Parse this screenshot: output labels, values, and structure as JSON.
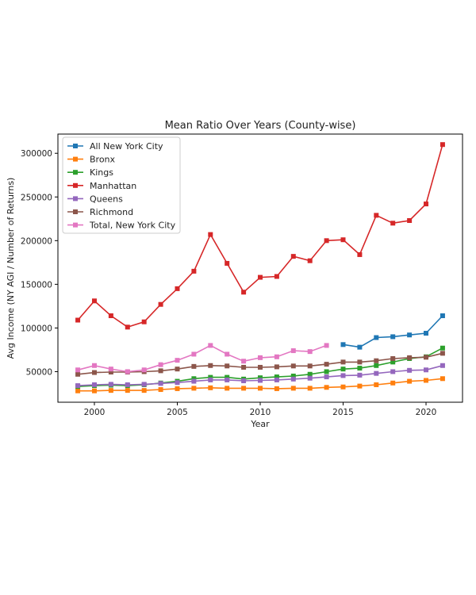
{
  "chart_data": {
    "type": "line",
    "title": "Mean Ratio Over Years (County-wise)",
    "xlabel": "Year",
    "ylabel": "Avg Income (NY AGI / Number of Returns)",
    "xlim": [
      1997.8,
      2022.2
    ],
    "ylim": [
      15000,
      322000
    ],
    "xticks": [
      2000,
      2005,
      2010,
      2015,
      2020
    ],
    "yticks": [
      50000,
      100000,
      150000,
      200000,
      250000,
      300000
    ],
    "grid": false,
    "legend_position": "top-left",
    "marker": "square",
    "series": [
      {
        "name": "All New York City",
        "color": "#1f77b4",
        "x": [
          2015,
          2016,
          2017,
          2018,
          2019,
          2020,
          2021
        ],
        "y": [
          81000,
          78000,
          89000,
          90000,
          92000,
          94000,
          114000
        ]
      },
      {
        "name": "Bronx",
        "color": "#ff7f0e",
        "x": [
          1999,
          2000,
          2001,
          2002,
          2003,
          2004,
          2005,
          2006,
          2007,
          2008,
          2009,
          2010,
          2011,
          2012,
          2013,
          2014,
          2015,
          2016,
          2017,
          2018,
          2019,
          2020,
          2021
        ],
        "y": [
          28000,
          28000,
          28500,
          28500,
          28500,
          29500,
          30500,
          31000,
          31500,
          31000,
          31000,
          31000,
          30500,
          31000,
          31000,
          32000,
          32500,
          33500,
          35000,
          37000,
          39000,
          40000,
          42000
        ]
      },
      {
        "name": "Kings",
        "color": "#2ca02c",
        "x": [
          1999,
          2000,
          2001,
          2002,
          2003,
          2004,
          2005,
          2006,
          2007,
          2008,
          2009,
          2010,
          2011,
          2012,
          2013,
          2014,
          2015,
          2016,
          2017,
          2018,
          2019,
          2020,
          2021
        ],
        "y": [
          33000,
          34000,
          34500,
          34000,
          35000,
          37000,
          39000,
          42000,
          43500,
          43500,
          41500,
          43000,
          44000,
          45000,
          47000,
          50000,
          53000,
          54000,
          57000,
          61000,
          65000,
          67000,
          77000
        ]
      },
      {
        "name": "Manhattan",
        "color": "#d62728",
        "x": [
          1999,
          2000,
          2001,
          2002,
          2003,
          2004,
          2005,
          2006,
          2007,
          2008,
          2009,
          2010,
          2011,
          2012,
          2013,
          2014,
          2015,
          2016,
          2017,
          2018,
          2019,
          2020,
          2021
        ],
        "y": [
          109000,
          131000,
          114000,
          101000,
          107000,
          127000,
          145000,
          165000,
          207000,
          174000,
          141000,
          158000,
          159000,
          182000,
          177000,
          200000,
          201000,
          184000,
          229000,
          220000,
          223000,
          242000,
          310000
        ]
      },
      {
        "name": "Queens",
        "color": "#9467bd",
        "x": [
          1999,
          2000,
          2001,
          2002,
          2003,
          2004,
          2005,
          2006,
          2007,
          2008,
          2009,
          2010,
          2011,
          2012,
          2013,
          2014,
          2015,
          2016,
          2017,
          2018,
          2019,
          2020,
          2021
        ],
        "y": [
          34000,
          35000,
          35500,
          35000,
          35500,
          36500,
          37500,
          39000,
          40500,
          40500,
          39500,
          40000,
          40500,
          41500,
          42500,
          44000,
          45500,
          46000,
          48000,
          50000,
          51500,
          52000,
          57000
        ]
      },
      {
        "name": "Richmond",
        "color": "#8c564b",
        "x": [
          1999,
          2000,
          2001,
          2002,
          2003,
          2004,
          2005,
          2006,
          2007,
          2008,
          2009,
          2010,
          2011,
          2012,
          2013,
          2014,
          2015,
          2016,
          2017,
          2018,
          2019,
          2020,
          2021
        ],
        "y": [
          47000,
          49000,
          49500,
          49500,
          50000,
          51000,
          53000,
          56000,
          57000,
          56500,
          55000,
          55000,
          55500,
          56500,
          56500,
          58500,
          61000,
          61000,
          62500,
          65000,
          66000,
          66500,
          71000
        ]
      },
      {
        "name": "Total, New York City",
        "color": "#e377c2",
        "x": [
          1999,
          2000,
          2001,
          2002,
          2003,
          2004,
          2005,
          2006,
          2007,
          2008,
          2009,
          2010,
          2011,
          2012,
          2013,
          2014
        ],
        "y": [
          52000,
          57000,
          53000,
          50000,
          52000,
          58000,
          63000,
          70000,
          80000,
          70000,
          62000,
          66000,
          67000,
          74000,
          73000,
          80000
        ]
      }
    ]
  }
}
